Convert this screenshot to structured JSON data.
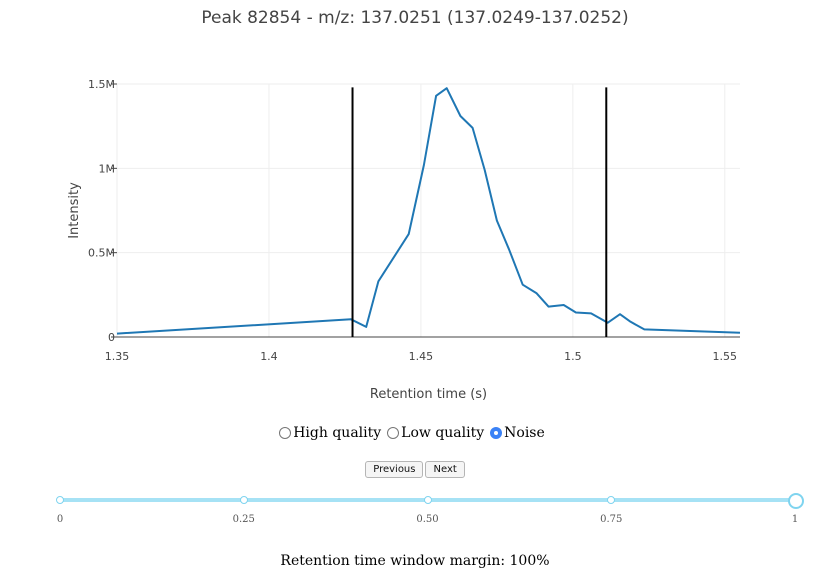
{
  "chart_data": {
    "type": "line",
    "title": "Peak 82854 - m/z: 137.0251 (137.0249-137.0252)",
    "xlabel": "Retention time (s)",
    "ylabel": "Intensity",
    "xlim": [
      1.35,
      1.555
    ],
    "ylim": [
      0,
      1.5
    ],
    "x_ticks": [
      {
        "value": 1.35,
        "label": "1.35"
      },
      {
        "value": 1.4,
        "label": "1.4"
      },
      {
        "value": 1.45,
        "label": "1.45"
      },
      {
        "value": 1.5,
        "label": "1.5"
      },
      {
        "value": 1.55,
        "label": "1.55"
      }
    ],
    "y_ticks": [
      {
        "value": 0,
        "label": "0"
      },
      {
        "value": 0.5,
        "label": "0.5M"
      },
      {
        "value": 1,
        "label": "1M"
      },
      {
        "value": 1.5,
        "label": "1.5M"
      }
    ],
    "grid": true,
    "series": [
      {
        "color": "#1f77b4",
        "x": [
          1.35,
          1.427,
          1.432,
          1.436,
          1.446,
          1.451,
          1.455,
          1.4585,
          1.463,
          1.467,
          1.471,
          1.475,
          1.479,
          1.4835,
          1.488,
          1.492,
          1.497,
          1.501,
          1.506,
          1.5115,
          1.5155,
          1.519,
          1.5235,
          1.555
        ],
        "y": [
          0.02,
          0.105,
          0.06,
          0.33,
          0.61,
          1.02,
          1.43,
          1.475,
          1.31,
          1.24,
          0.99,
          0.69,
          0.52,
          0.31,
          0.26,
          0.18,
          0.19,
          0.145,
          0.14,
          0.085,
          0.135,
          0.09,
          0.045,
          0.025
        ]
      }
    ],
    "vlines": [
      {
        "x": 1.4275,
        "color": "#000000",
        "ymax": 1.48
      },
      {
        "x": 1.511,
        "color": "#000000",
        "ymax": 1.48
      }
    ]
  },
  "quality": {
    "options": [
      {
        "label": "High quality",
        "checked": false
      },
      {
        "label": "Low quality",
        "checked": false
      },
      {
        "label": "Noise",
        "checked": true
      }
    ]
  },
  "nav": {
    "previous_label": "Previous",
    "next_label": "Next"
  },
  "slider": {
    "value": 1,
    "min": 0,
    "max": 1,
    "marks": [
      {
        "value": 0,
        "label": "0"
      },
      {
        "value": 0.25,
        "label": "0.25"
      },
      {
        "value": 0.5,
        "label": "0.50"
      },
      {
        "value": 0.75,
        "label": "0.75"
      },
      {
        "value": 1,
        "label": "1"
      }
    ]
  },
  "margin_label": "Retention time window margin: 100%"
}
